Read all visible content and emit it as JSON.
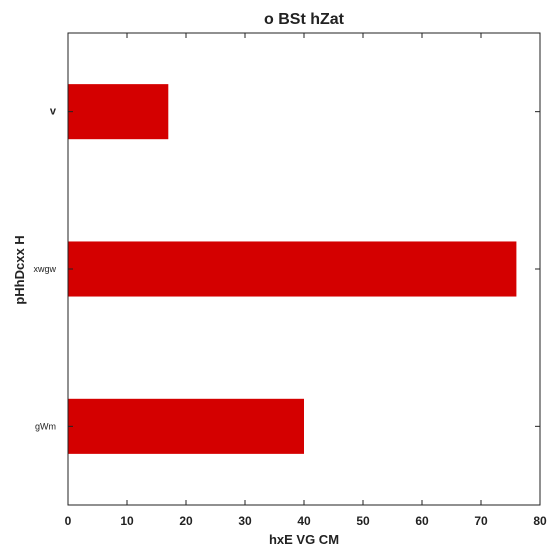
{
  "chart_data": {
    "type": "bar",
    "orientation": "horizontal",
    "title": "o BSt hZat",
    "xlabel": "hxE VG CM",
    "ylabel": "pHhDcxx H",
    "categories": [
      "gWm",
      "xwgw",
      "v"
    ],
    "values": [
      40,
      76,
      17
    ],
    "xlim": [
      0,
      80
    ],
    "xticks": [
      "0",
      "10",
      "20",
      "30",
      "40",
      "50",
      "60",
      "70",
      "80"
    ],
    "bar_color": "#d40000",
    "grid": false,
    "legend": "none"
  }
}
